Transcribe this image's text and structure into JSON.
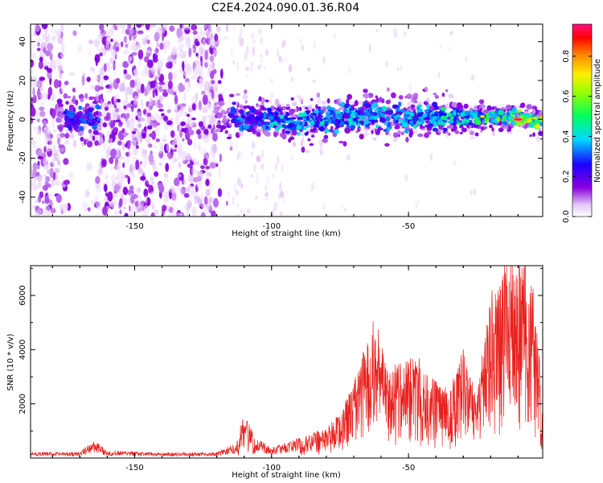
{
  "title": "C2E4.2024.090.01.36.R04",
  "chart_data": [
    {
      "type": "heatmap",
      "xlabel": "Height of straight line (km)",
      "ylabel": "Frequency (Hz)",
      "xlim": [
        -188,
        -1
      ],
      "ylim": [
        -50,
        49
      ],
      "xticks": [
        -150,
        -100,
        -50
      ],
      "yticks": [
        -40,
        -20,
        0,
        20,
        40
      ],
      "colorbar": {
        "label": "Normalized spectral amplitude",
        "range": [
          0,
          0.96
        ],
        "ticks": [
          "0.0",
          "0.2",
          "0.4",
          "0.6",
          "0.8"
        ],
        "colormap": "rainbow (white → purple → blue → cyan → green → yellow → orange → red → magenta)"
      },
      "features": {
        "low_amplitude_noise_region_km": [
          -188,
          -115
        ],
        "signal_band_center_hz": [
          {
            "x": -170,
            "y": 0
          },
          {
            "x": -110,
            "y": 0
          },
          {
            "x": -90,
            "y": -1
          },
          {
            "x": -70,
            "y": 2
          },
          {
            "x": -50,
            "y": 1
          },
          {
            "x": -30,
            "y": 1
          },
          {
            "x": -15,
            "y": 1
          },
          {
            "x": -1,
            "y": -1
          }
        ],
        "peak_amplitude_location": {
          "x": -10,
          "y": 0,
          "value": 0.96
        }
      }
    },
    {
      "type": "line",
      "xlabel": "Height of straight line (km)",
      "ylabel": "SNR (10 * v/v)",
      "xlim": [
        -188,
        -1
      ],
      "ylim": [
        0,
        7100
      ],
      "xticks": [
        -150,
        -100,
        -50
      ],
      "yticks": [
        2000,
        4000,
        6000
      ],
      "series_color": "#e8211e",
      "envelope": [
        {
          "x": -188,
          "y": 200
        },
        {
          "x": -170,
          "y": 200
        },
        {
          "x": -165,
          "y": 600
        },
        {
          "x": -160,
          "y": 250
        },
        {
          "x": -140,
          "y": 180
        },
        {
          "x": -120,
          "y": 200
        },
        {
          "x": -113,
          "y": 500
        },
        {
          "x": -110,
          "y": 1700
        },
        {
          "x": -106,
          "y": 700
        },
        {
          "x": -100,
          "y": 350
        },
        {
          "x": -90,
          "y": 700
        },
        {
          "x": -80,
          "y": 1100
        },
        {
          "x": -75,
          "y": 1600
        },
        {
          "x": -70,
          "y": 2700
        },
        {
          "x": -65,
          "y": 4200
        },
        {
          "x": -62,
          "y": 5100
        },
        {
          "x": -58,
          "y": 3100
        },
        {
          "x": -52,
          "y": 3500
        },
        {
          "x": -48,
          "y": 3800
        },
        {
          "x": -42,
          "y": 3000
        },
        {
          "x": -35,
          "y": 2400
        },
        {
          "x": -30,
          "y": 3900
        },
        {
          "x": -25,
          "y": 2200
        },
        {
          "x": -20,
          "y": 6000
        },
        {
          "x": -15,
          "y": 6900
        },
        {
          "x": -10,
          "y": 7100
        },
        {
          "x": -5,
          "y": 6600
        },
        {
          "x": -1,
          "y": 2400
        }
      ]
    }
  ]
}
